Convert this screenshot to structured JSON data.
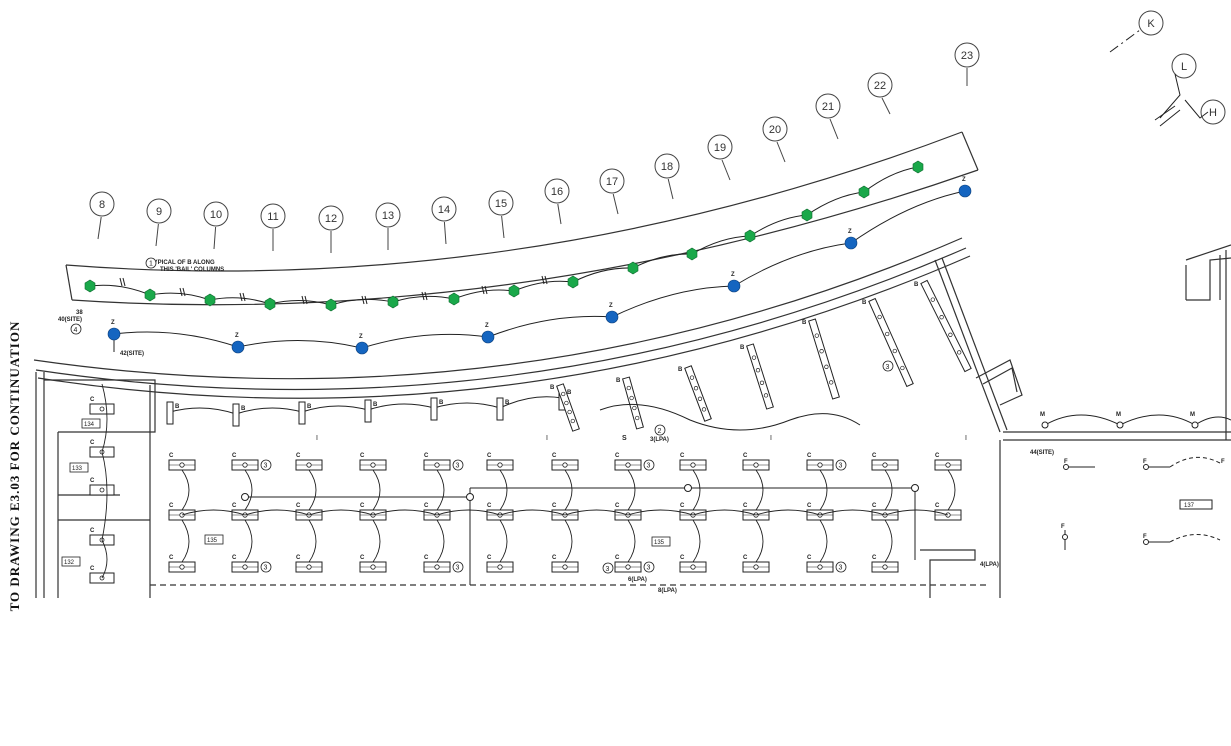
{
  "drawing": {
    "side_note": "TO DRAWING E3.03 FOR CONTINUATION",
    "callout_note_line1": "TYPICAL OF B ALONG",
    "callout_note_line2": "THIS 'BAIL' COLUMNS",
    "callout_note_number": "1"
  },
  "grid_bubbles": [
    "8",
    "9",
    "10",
    "11",
    "12",
    "13",
    "14",
    "15",
    "16",
    "17",
    "18",
    "19",
    "20",
    "21",
    "22",
    "23",
    "K",
    "L",
    "H"
  ],
  "room_tags": {
    "r134": "134",
    "r133": "133",
    "r132": "132",
    "r135a": "135",
    "r135b": "135",
    "r137": "137"
  },
  "circuit_labels": {
    "home_left_top": "38",
    "home_left_site": "40(SITE)",
    "home_left_num": "4",
    "home_z_site": "42(SITE)",
    "home_right_site": "44(SITE)",
    "sw_a": "3(LPA)",
    "sw_b": "6(LPA)",
    "sw_c": "8(LPA)",
    "sw_d": "4(LPA)",
    "sw_num": "3",
    "sw_num2": "2"
  },
  "fixture_types": {
    "z": "Z",
    "b": "B",
    "c": "C",
    "m": "M",
    "f": "F",
    "i": "I",
    "three": "3",
    "s": "S"
  },
  "colors": {
    "green_fixture": "#1aa84a",
    "blue_fixture": "#1565c0",
    "line": "#222222"
  }
}
